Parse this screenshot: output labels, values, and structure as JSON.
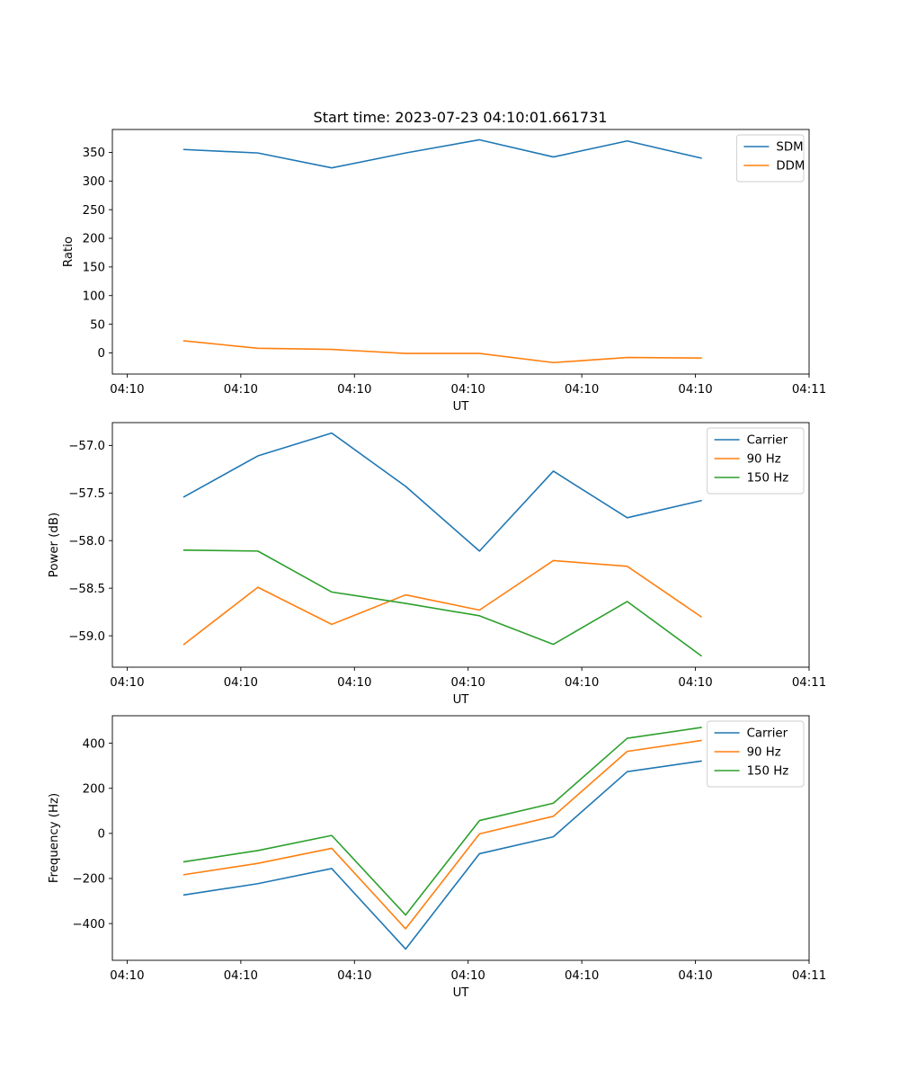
{
  "figure": {
    "title": "Start time: 2023-07-23 04:10:01.661731"
  },
  "colors": {
    "blue": "#1f77b4",
    "orange": "#ff7f0e",
    "green": "#2ca02c",
    "axis": "#000000",
    "legend_border": "#cccccc"
  },
  "chart_data": [
    {
      "type": "line",
      "title": "Start time: 2023-07-23 04:10:01.661731",
      "xlabel": "UT",
      "ylabel": "Ratio",
      "x_tick_labels": [
        "04:10",
        "04:10",
        "04:10",
        "04:10",
        "04:10",
        "04:10",
        "04:11"
      ],
      "x_points": [
        0.5,
        1.15,
        1.8,
        2.45,
        3.1,
        3.75,
        4.4,
        5.05
      ],
      "xlim": [
        -0.13,
        6.0
      ],
      "ylim": [
        -37,
        390
      ],
      "y_ticks": [
        0,
        50,
        100,
        150,
        200,
        250,
        300,
        350
      ],
      "legend_position": "upper right",
      "series": [
        {
          "name": "SDM",
          "color": "#1f77b4",
          "values": [
            355,
            349,
            323,
            349,
            372,
            342,
            370,
            340
          ]
        },
        {
          "name": "DDM",
          "color": "#ff7f0e",
          "values": [
            21,
            8,
            6,
            -1,
            -1,
            -17,
            -8,
            -9
          ]
        }
      ]
    },
    {
      "type": "line",
      "xlabel": "UT",
      "ylabel": "Power (dB)",
      "x_tick_labels": [
        "04:10",
        "04:10",
        "04:10",
        "04:10",
        "04:10",
        "04:10",
        "04:11"
      ],
      "x_points": [
        0.5,
        1.15,
        1.8,
        2.45,
        3.1,
        3.75,
        4.4,
        5.05
      ],
      "xlim": [
        -0.13,
        6.0
      ],
      "ylim": [
        -59.33,
        -56.76
      ],
      "y_ticks": [
        -59.0,
        -58.5,
        -58.0,
        -57.5,
        -57.0
      ],
      "y_tick_labels": [
        "−59.0",
        "−58.5",
        "−58.0",
        "−57.5",
        "−57.0"
      ],
      "legend_position": "upper right",
      "series": [
        {
          "name": "Carrier",
          "color": "#1f77b4",
          "values": [
            -57.54,
            -57.11,
            -56.87,
            -57.43,
            -58.11,
            -57.27,
            -57.76,
            -57.58
          ]
        },
        {
          "name": "90 Hz",
          "color": "#ff7f0e",
          "values": [
            -59.09,
            -58.49,
            -58.88,
            -58.57,
            -58.73,
            -58.21,
            -58.27,
            -58.8
          ]
        },
        {
          "name": "150 Hz",
          "color": "#2ca02c",
          "values": [
            -58.1,
            -58.11,
            -58.54,
            -58.66,
            -58.79,
            -59.09,
            -58.64,
            -59.21
          ]
        }
      ]
    },
    {
      "type": "line",
      "xlabel": "UT",
      "ylabel": "Frequency (Hz)",
      "x_tick_labels": [
        "04:10",
        "04:10",
        "04:10",
        "04:10",
        "04:10",
        "04:10",
        "04:11"
      ],
      "x_points": [
        0.5,
        1.15,
        1.8,
        2.45,
        3.1,
        3.75,
        4.4,
        5.05
      ],
      "xlim": [
        -0.13,
        6.0
      ],
      "ylim": [
        -563,
        522
      ],
      "y_ticks": [
        -400,
        -200,
        0,
        200,
        400
      ],
      "y_tick_labels": [
        "−400",
        "−200",
        "0",
        "200",
        "400"
      ],
      "legend_position": "upper right",
      "series": [
        {
          "name": "Carrier",
          "color": "#1f77b4",
          "values": [
            -273,
            -223,
            -156,
            -513,
            -90,
            -15,
            274,
            321
          ]
        },
        {
          "name": "90 Hz",
          "color": "#ff7f0e",
          "values": [
            -183,
            -133,
            -66,
            -423,
            -2,
            76,
            364,
            412
          ]
        },
        {
          "name": "150 Hz",
          "color": "#2ca02c",
          "values": [
            -126,
            -76,
            -9,
            -362,
            57,
            134,
            422,
            470
          ]
        }
      ]
    }
  ]
}
